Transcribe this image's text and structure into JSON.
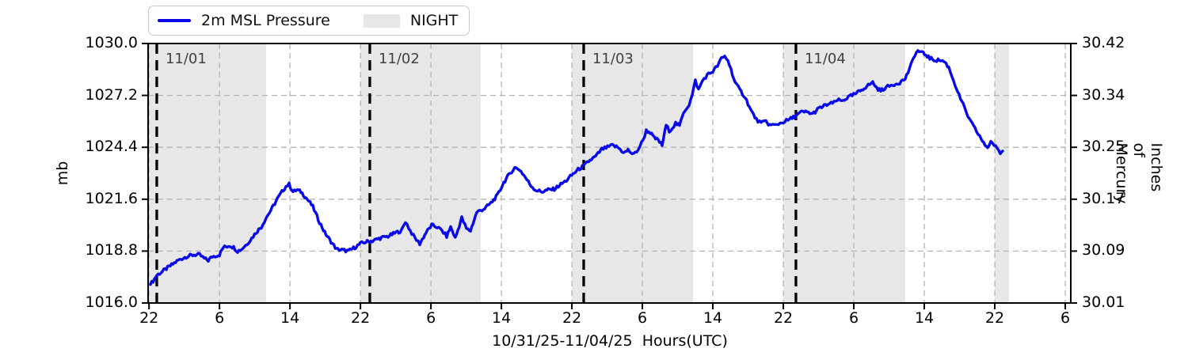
{
  "legend": {
    "items": [
      {
        "label": "2m MSL Pressure",
        "swatch": "line",
        "color": "#0a0ae8"
      },
      {
        "label": "NIGHT",
        "swatch": "patch",
        "color": "#e7e7e7"
      }
    ]
  },
  "axes": {
    "xlabel": "10/31/25-11/04/25  Hours(UTC)",
    "ylabel_left": "mb",
    "ylabel_right": "Inches of Mercury"
  },
  "chart_data": {
    "type": "line",
    "title": "",
    "xlabel": "10/31/25-11/04/25  Hours(UTC)",
    "ylabel_left": "mb",
    "ylabel_right": "Inches of Mercury",
    "ylim_mb": [
      1016.0,
      1030.0
    ],
    "ylim_inhg": [
      30.01,
      30.42
    ],
    "grid": true,
    "x_tick_labels": [
      "22",
      "6",
      "14",
      "22",
      "6",
      "14",
      "22",
      "6",
      "14",
      "22",
      "6",
      "14",
      "22",
      "6"
    ],
    "x_tick_hours_interval": 8,
    "y_tick_labels_left": [
      "1016.0",
      "1018.8",
      "1021.6",
      "1024.4",
      "1027.2",
      "1030.0"
    ],
    "y_tick_labels_right": [
      "30.01",
      "30.09",
      "30.17",
      "30.25",
      "30.34",
      "30.42"
    ],
    "day_lines": [
      {
        "label": "11/01",
        "fx": 0.0094
      },
      {
        "label": "11/02",
        "fx": 0.2403
      },
      {
        "label": "11/03",
        "fx": 0.4721
      },
      {
        "label": "11/04",
        "fx": 0.7021
      }
    ],
    "night_bands_fx": [
      [
        0.0,
        0.1279
      ],
      [
        0.23,
        0.3605
      ],
      [
        0.4592,
        0.5906
      ],
      [
        0.6884,
        0.8206
      ],
      [
        0.9176,
        0.933
      ]
    ],
    "night_color": "#e7e7e7",
    "grid_color": "#b4b4b4",
    "line_color": "#0a0ae8",
    "noise_mb": 0.09,
    "series": [
      {
        "name": "2m MSL Pressure",
        "units": "mb",
        "points_fx_mb": [
          [
            0.0026,
            1017.0
          ],
          [
            0.0069,
            1017.3
          ],
          [
            0.0094,
            1017.5
          ],
          [
            0.0155,
            1017.7
          ],
          [
            0.024,
            1018.0
          ],
          [
            0.0326,
            1018.3
          ],
          [
            0.0412,
            1018.5
          ],
          [
            0.0498,
            1018.6
          ],
          [
            0.0558,
            1018.6
          ],
          [
            0.0609,
            1018.4
          ],
          [
            0.0652,
            1018.3
          ],
          [
            0.0695,
            1018.5
          ],
          [
            0.0773,
            1018.6
          ],
          [
            0.0815,
            1019.0
          ],
          [
            0.0884,
            1019.1
          ],
          [
            0.0927,
            1019.0
          ],
          [
            0.097,
            1018.8
          ],
          [
            0.1013,
            1018.9
          ],
          [
            0.1073,
            1019.2
          ],
          [
            0.1124,
            1019.5
          ],
          [
            0.1185,
            1019.9
          ],
          [
            0.1227,
            1020.1
          ],
          [
            0.1279,
            1020.6
          ],
          [
            0.133,
            1021.0
          ],
          [
            0.1399,
            1021.6
          ],
          [
            0.1451,
            1022.0
          ],
          [
            0.1494,
            1022.3
          ],
          [
            0.1528,
            1022.4
          ],
          [
            0.1571,
            1022.0
          ],
          [
            0.1614,
            1022.1
          ],
          [
            0.1657,
            1022.0
          ],
          [
            0.1725,
            1021.6
          ],
          [
            0.1785,
            1021.2
          ],
          [
            0.1845,
            1020.5
          ],
          [
            0.1914,
            1019.8
          ],
          [
            0.1983,
            1019.3
          ],
          [
            0.2043,
            1018.9
          ],
          [
            0.2112,
            1018.85
          ],
          [
            0.2172,
            1018.8
          ],
          [
            0.224,
            1019.0
          ],
          [
            0.23,
            1019.2
          ],
          [
            0.2361,
            1019.3
          ],
          [
            0.2429,
            1019.35
          ],
          [
            0.2515,
            1019.5
          ],
          [
            0.2601,
            1019.6
          ],
          [
            0.2687,
            1019.8
          ],
          [
            0.2747,
            1019.9
          ],
          [
            0.279,
            1020.4
          ],
          [
            0.2841,
            1019.9
          ],
          [
            0.2893,
            1019.5
          ],
          [
            0.2944,
            1019.2
          ],
          [
            0.3013,
            1019.8
          ],
          [
            0.3073,
            1020.2
          ],
          [
            0.3133,
            1020.1
          ],
          [
            0.3185,
            1019.9
          ],
          [
            0.3236,
            1019.6
          ],
          [
            0.3279,
            1020.1
          ],
          [
            0.333,
            1019.5
          ],
          [
            0.3399,
            1020.6
          ],
          [
            0.3451,
            1020.0
          ],
          [
            0.3494,
            1019.9
          ],
          [
            0.3562,
            1020.9
          ],
          [
            0.3648,
            1021.1
          ],
          [
            0.3717,
            1021.4
          ],
          [
            0.3785,
            1021.8
          ],
          [
            0.3854,
            1022.5
          ],
          [
            0.3923,
            1023.0
          ],
          [
            0.3974,
            1023.3
          ],
          [
            0.4026,
            1023.2
          ],
          [
            0.4086,
            1022.8
          ],
          [
            0.4137,
            1022.4
          ],
          [
            0.4197,
            1022.1
          ],
          [
            0.4266,
            1022.0
          ],
          [
            0.4335,
            1022.1
          ],
          [
            0.4403,
            1022.15
          ],
          [
            0.4472,
            1022.4
          ],
          [
            0.4532,
            1022.6
          ],
          [
            0.4592,
            1022.9
          ],
          [
            0.4661,
            1023.2
          ],
          [
            0.4721,
            1023.4
          ],
          [
            0.479,
            1023.7
          ],
          [
            0.485,
            1023.9
          ],
          [
            0.4918,
            1024.3
          ],
          [
            0.4979,
            1024.4
          ],
          [
            0.503,
            1024.5
          ],
          [
            0.509,
            1024.4
          ],
          [
            0.5159,
            1024.1
          ],
          [
            0.5202,
            1024.25
          ],
          [
            0.5262,
            1024.0
          ],
          [
            0.5313,
            1024.3
          ],
          [
            0.5365,
            1024.8
          ],
          [
            0.5399,
            1025.3
          ],
          [
            0.5442,
            1025.2
          ],
          [
            0.5485,
            1024.9
          ],
          [
            0.5528,
            1024.8
          ],
          [
            0.5571,
            1024.5
          ],
          [
            0.5614,
            1025.6
          ],
          [
            0.5648,
            1025.3
          ],
          [
            0.5682,
            1025.45
          ],
          [
            0.5717,
            1025.7
          ],
          [
            0.576,
            1025.55
          ],
          [
            0.5803,
            1026.3
          ],
          [
            0.5863,
            1026.7
          ],
          [
            0.5897,
            1027.2
          ],
          [
            0.5931,
            1028.0
          ],
          [
            0.5966,
            1027.5
          ],
          [
            0.6009,
            1028.0
          ],
          [
            0.606,
            1028.3
          ],
          [
            0.612,
            1028.5
          ],
          [
            0.6172,
            1028.8
          ],
          [
            0.6215,
            1029.2
          ],
          [
            0.6249,
            1029.3
          ],
          [
            0.6283,
            1029.1
          ],
          [
            0.6318,
            1028.6
          ],
          [
            0.6361,
            1027.9
          ],
          [
            0.6412,
            1027.5
          ],
          [
            0.6472,
            1027.1
          ],
          [
            0.6532,
            1026.4
          ],
          [
            0.6592,
            1025.9
          ],
          [
            0.6644,
            1025.7
          ],
          [
            0.6695,
            1025.8
          ],
          [
            0.6738,
            1025.6
          ],
          [
            0.6798,
            1025.6
          ],
          [
            0.685,
            1025.7
          ],
          [
            0.6901,
            1025.8
          ],
          [
            0.6952,
            1025.9
          ],
          [
            0.7021,
            1026.1
          ],
          [
            0.7081,
            1026.3
          ],
          [
            0.7141,
            1026.3
          ],
          [
            0.7202,
            1026.2
          ],
          [
            0.727,
            1026.5
          ],
          [
            0.7356,
            1026.7
          ],
          [
            0.7433,
            1026.8
          ],
          [
            0.7468,
            1026.95
          ],
          [
            0.7519,
            1026.9
          ],
          [
            0.7588,
            1027.1
          ],
          [
            0.7674,
            1027.3
          ],
          [
            0.776,
            1027.6
          ],
          [
            0.782,
            1027.8
          ],
          [
            0.7854,
            1027.9
          ],
          [
            0.7897,
            1027.6
          ],
          [
            0.794,
            1027.45
          ],
          [
            0.7983,
            1027.6
          ],
          [
            0.8034,
            1027.7
          ],
          [
            0.8086,
            1027.8
          ],
          [
            0.8146,
            1027.9
          ],
          [
            0.8206,
            1028.1
          ],
          [
            0.8266,
            1028.8
          ],
          [
            0.8309,
            1029.4
          ],
          [
            0.8343,
            1029.6
          ],
          [
            0.8386,
            1029.5
          ],
          [
            0.8429,
            1029.4
          ],
          [
            0.8472,
            1029.2
          ],
          [
            0.8532,
            1029.1
          ],
          [
            0.8592,
            1029.1
          ],
          [
            0.8635,
            1029.0
          ],
          [
            0.8678,
            1028.7
          ],
          [
            0.873,
            1028.0
          ],
          [
            0.879,
            1027.2
          ],
          [
            0.885,
            1026.5
          ],
          [
            0.8901,
            1025.9
          ],
          [
            0.8961,
            1025.4
          ],
          [
            0.9013,
            1025.0
          ],
          [
            0.9056,
            1024.6
          ],
          [
            0.9099,
            1024.4
          ],
          [
            0.9133,
            1024.7
          ],
          [
            0.9167,
            1024.55
          ],
          [
            0.9202,
            1024.3
          ],
          [
            0.9236,
            1024.1
          ],
          [
            0.9262,
            1024.2
          ]
        ]
      }
    ]
  }
}
